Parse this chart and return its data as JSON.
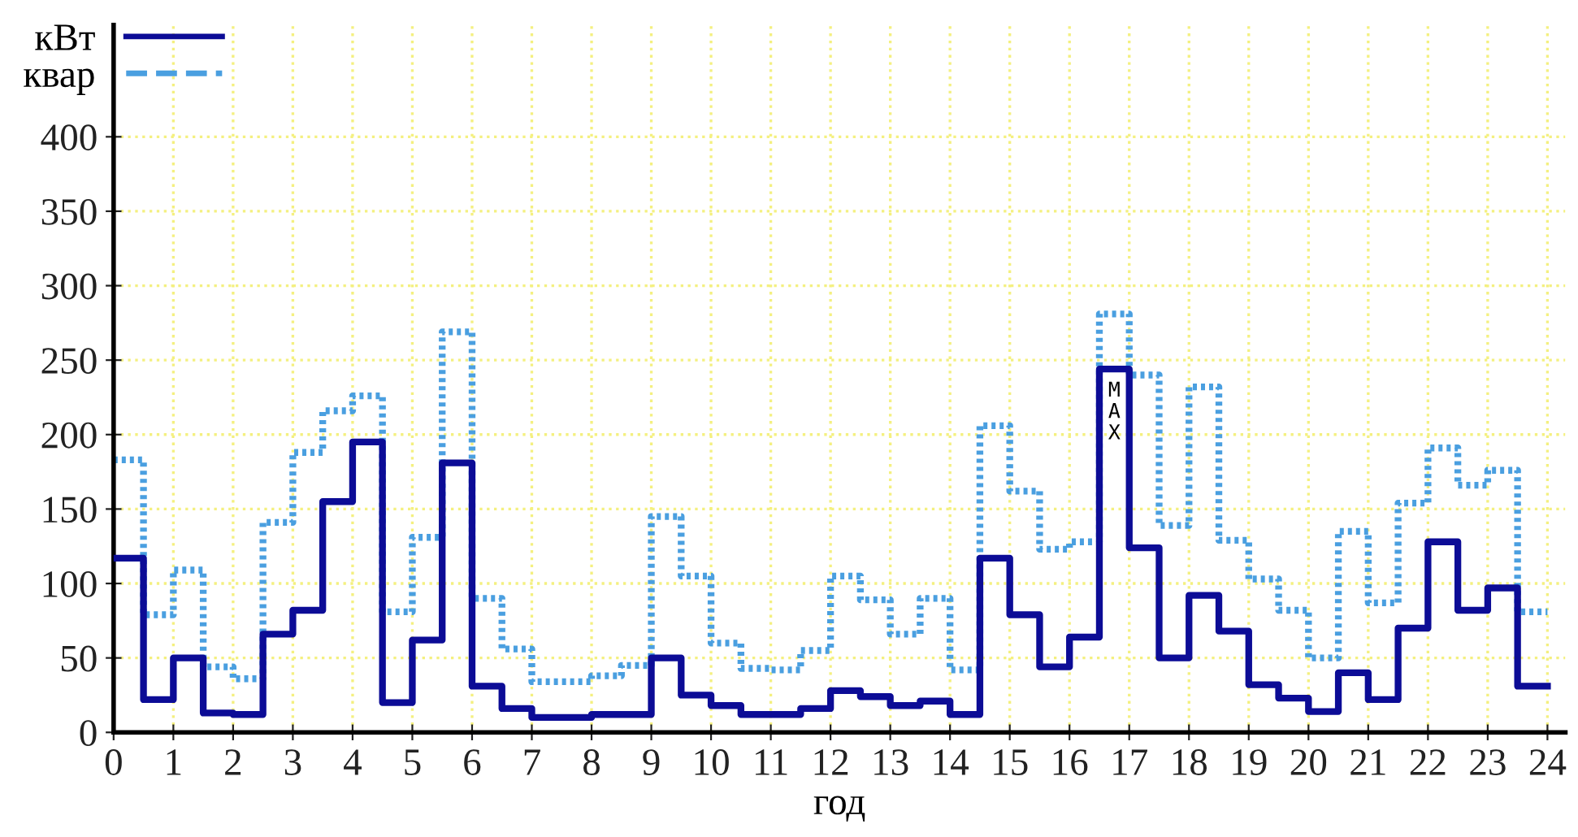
{
  "chart_data": {
    "type": "step",
    "xlabel": "год",
    "x": [
      0,
      0.5,
      1,
      1.5,
      2,
      2.5,
      3,
      3.5,
      4,
      4.5,
      5,
      5.5,
      6,
      6.5,
      7,
      7.5,
      8,
      8.5,
      9,
      9.5,
      10,
      10.5,
      11,
      11.5,
      12,
      12.5,
      13,
      13.5,
      14,
      14.5,
      15,
      15.5,
      16,
      16.5,
      17,
      17.5,
      18,
      18.5,
      19,
      19.5,
      20,
      20.5,
      21,
      21.5,
      22,
      22.5,
      23,
      23.5,
      24
    ],
    "series": [
      {
        "name": "кВт",
        "color": "#0c0c96",
        "line_style": "solid",
        "values": [
          117,
          22,
          50,
          13,
          12,
          66,
          82,
          155,
          195,
          20,
          62,
          181,
          31,
          16,
          10,
          10,
          12,
          12,
          50,
          25,
          18,
          12,
          12,
          16,
          28,
          24,
          18,
          21,
          12,
          117,
          79,
          44,
          64,
          244,
          124,
          50,
          92,
          68,
          32,
          23,
          14,
          40,
          22,
          70,
          128,
          82,
          97,
          31,
          31
        ]
      },
      {
        "name": "квар",
        "color": "#4a9fe0",
        "line_style": "dotted",
        "values": [
          183,
          79,
          109,
          44,
          36,
          141,
          188,
          216,
          226,
          81,
          131,
          269,
          90,
          56,
          34,
          34,
          38,
          45,
          145,
          105,
          60,
          43,
          42,
          55,
          105,
          89,
          66,
          90,
          42,
          206,
          162,
          123,
          128,
          281,
          240,
          139,
          232,
          129,
          103,
          82,
          50,
          135,
          87,
          154,
          191,
          166,
          176,
          81,
          81
        ]
      }
    ],
    "xlim": [
      0,
      24.3
    ],
    "ylim": [
      0,
      475
    ],
    "xticks": [
      0,
      1,
      2,
      3,
      4,
      5,
      6,
      7,
      8,
      9,
      10,
      11,
      12,
      13,
      14,
      15,
      16,
      17,
      18,
      19,
      20,
      21,
      22,
      23,
      24
    ],
    "yticks": [
      0,
      50,
      100,
      150,
      200,
      250,
      300,
      350,
      400
    ],
    "grid": true,
    "legend": "top left",
    "annotations": [
      {
        "text": "MAX",
        "x": 16.75,
        "y": 244
      }
    ]
  }
}
